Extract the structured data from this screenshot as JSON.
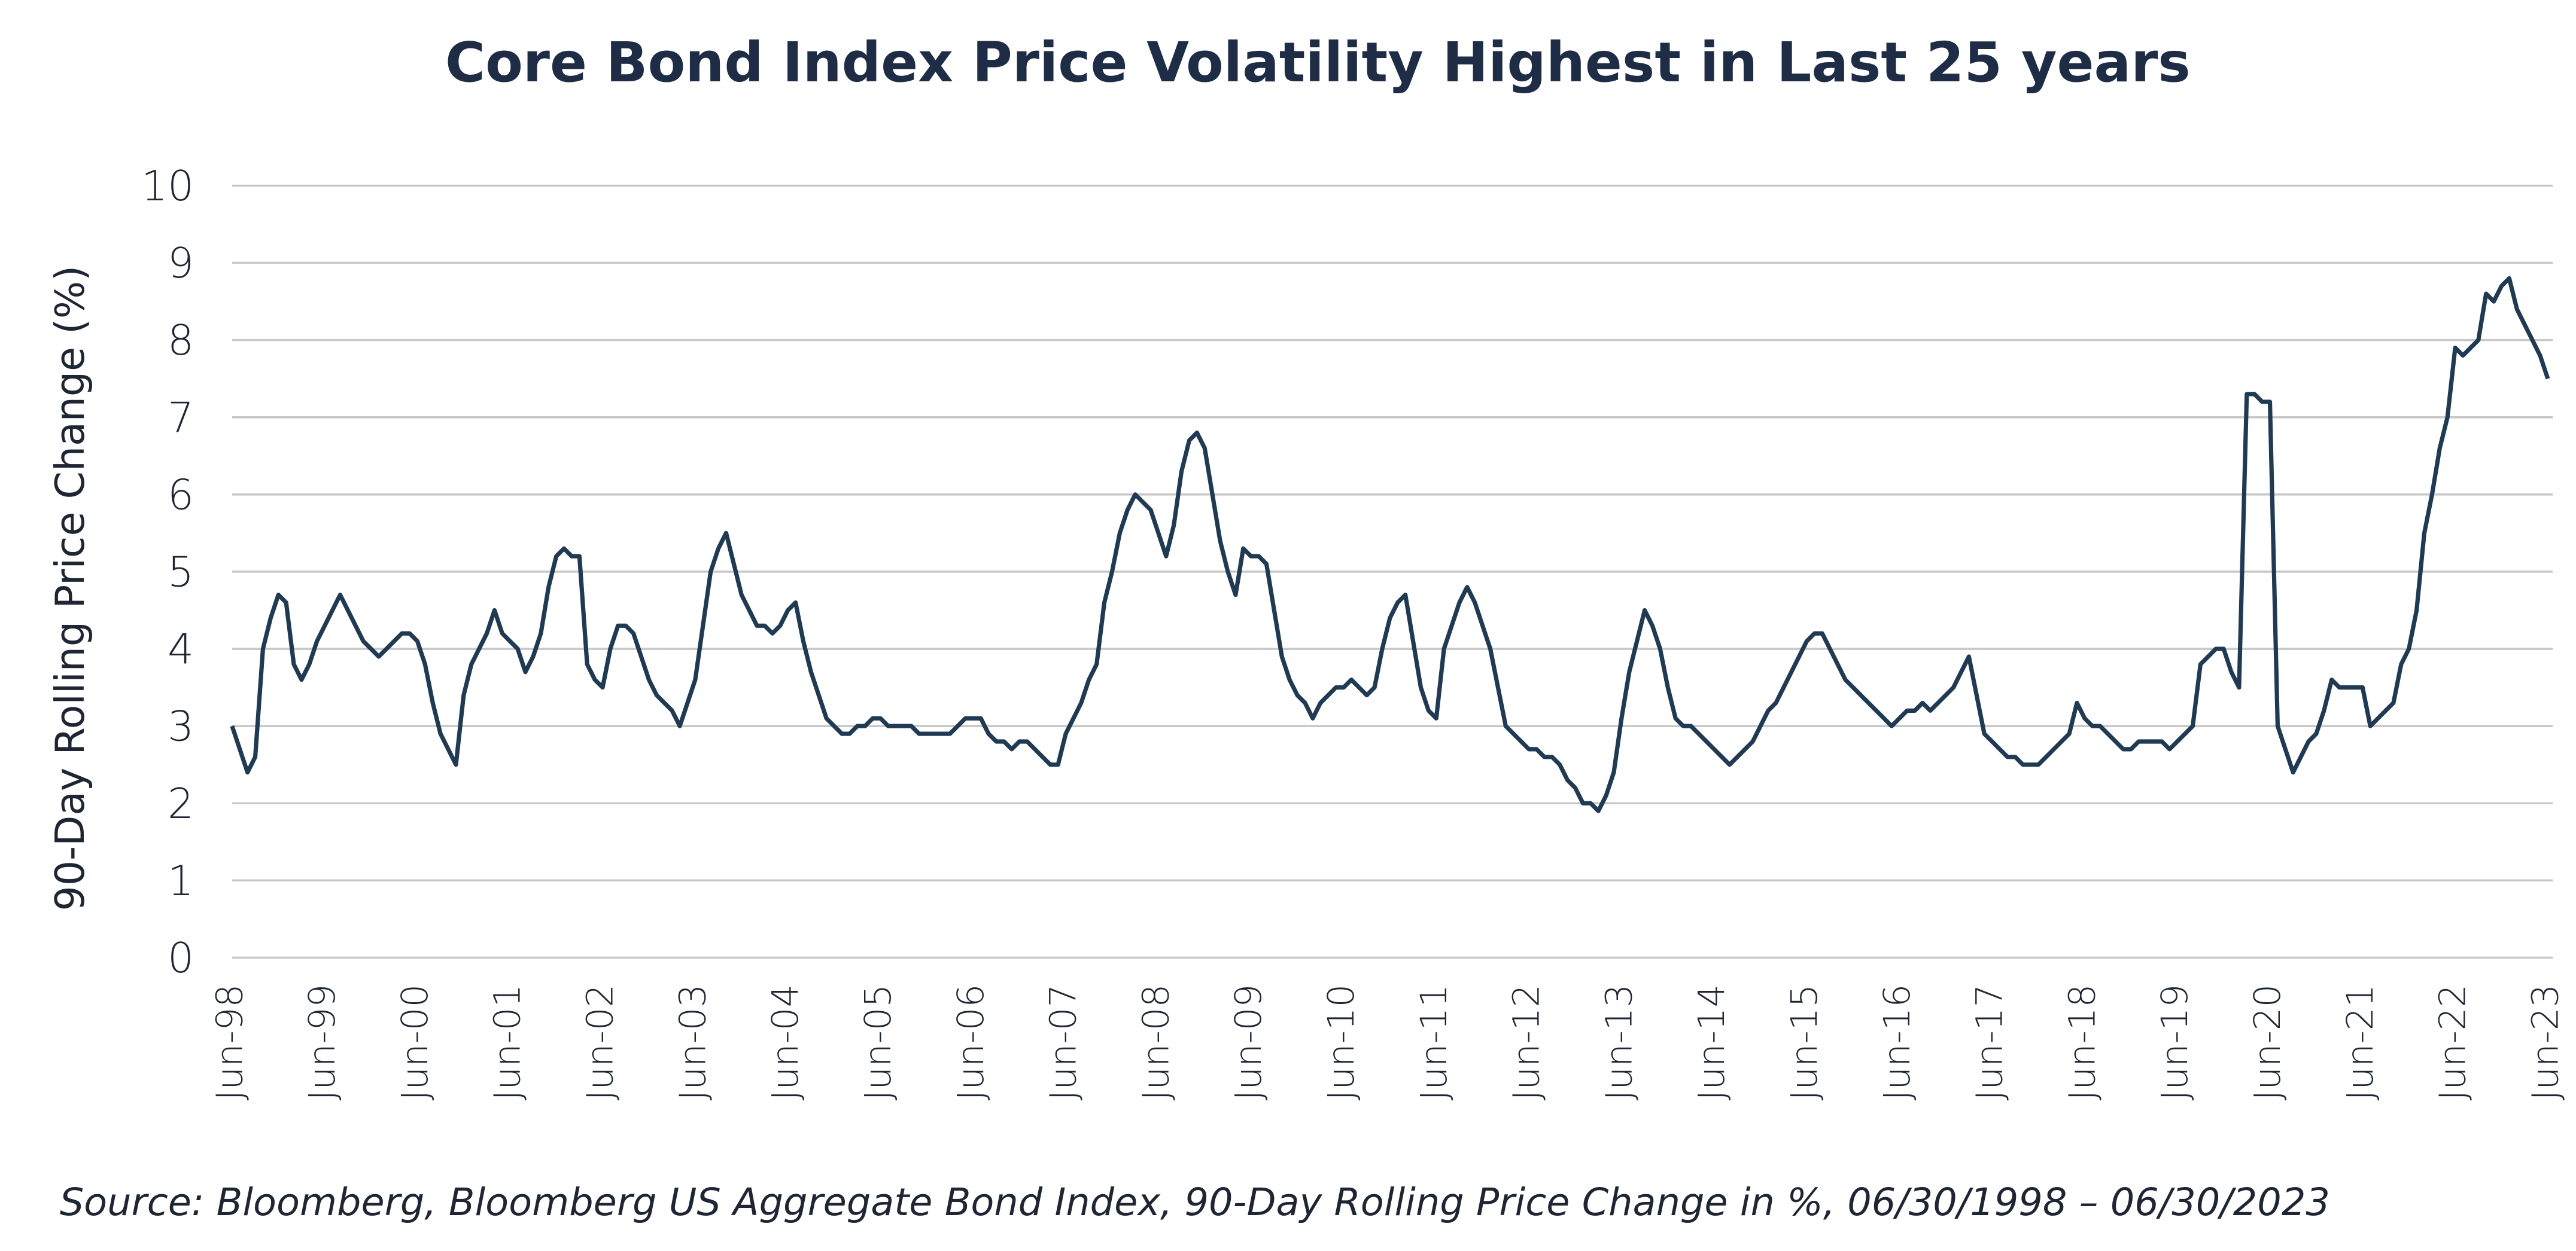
{
  "chart_data": {
    "type": "line",
    "title": "Core Bond Index Price Volatility Highest in Last 25 years",
    "y_label": "90-Day Rolling Price Change (%)",
    "source": "Source:  Bloomberg, Bloomberg US Aggregate Bond Index, 90-Day Rolling Price Change in %, 06/30/1998 – 06/30/2023",
    "color": "#1f3a52",
    "grid": true,
    "ylim": [
      0,
      10
    ],
    "yticks": [
      0,
      1,
      2,
      3,
      4,
      5,
      6,
      7,
      8,
      9,
      10
    ],
    "categories": [
      "Jun-98",
      null,
      null,
      null,
      null,
      null,
      null,
      null,
      null,
      null,
      null,
      null,
      "Jun-99",
      null,
      null,
      null,
      null,
      null,
      null,
      null,
      null,
      null,
      null,
      null,
      "Jun-00",
      null,
      null,
      null,
      null,
      null,
      null,
      null,
      null,
      null,
      null,
      null,
      "Jun-01",
      null,
      null,
      null,
      null,
      null,
      null,
      null,
      null,
      null,
      null,
      null,
      "Jun-02",
      null,
      null,
      null,
      null,
      null,
      null,
      null,
      null,
      null,
      null,
      null,
      "Jun-03",
      null,
      null,
      null,
      null,
      null,
      null,
      null,
      null,
      null,
      null,
      null,
      "Jun-04",
      null,
      null,
      null,
      null,
      null,
      null,
      null,
      null,
      null,
      null,
      null,
      "Jun-05",
      null,
      null,
      null,
      null,
      null,
      null,
      null,
      null,
      null,
      null,
      null,
      "Jun-06",
      null,
      null,
      null,
      null,
      null,
      null,
      null,
      null,
      null,
      null,
      null,
      "Jun-07",
      null,
      null,
      null,
      null,
      null,
      null,
      null,
      null,
      null,
      null,
      null,
      "Jun-08",
      null,
      null,
      null,
      null,
      null,
      null,
      null,
      null,
      null,
      null,
      null,
      "Jun-09",
      null,
      null,
      null,
      null,
      null,
      null,
      null,
      null,
      null,
      null,
      null,
      "Jun-10",
      null,
      null,
      null,
      null,
      null,
      null,
      null,
      null,
      null,
      null,
      null,
      "Jun-11",
      null,
      null,
      null,
      null,
      null,
      null,
      null,
      null,
      null,
      null,
      null,
      "Jun-12",
      null,
      null,
      null,
      null,
      null,
      null,
      null,
      null,
      null,
      null,
      null,
      "Jun-13",
      null,
      null,
      null,
      null,
      null,
      null,
      null,
      null,
      null,
      null,
      null,
      "Jun-14",
      null,
      null,
      null,
      null,
      null,
      null,
      null,
      null,
      null,
      null,
      null,
      "Jun-15",
      null,
      null,
      null,
      null,
      null,
      null,
      null,
      null,
      null,
      null,
      null,
      "Jun-16",
      null,
      null,
      null,
      null,
      null,
      null,
      null,
      null,
      null,
      null,
      null,
      "Jun-17",
      null,
      null,
      null,
      null,
      null,
      null,
      null,
      null,
      null,
      null,
      null,
      "Jun-18",
      null,
      null,
      null,
      null,
      null,
      null,
      null,
      null,
      null,
      null,
      null,
      "Jun-19",
      null,
      null,
      null,
      null,
      null,
      null,
      null,
      null,
      null,
      null,
      null,
      "Jun-20",
      null,
      null,
      null,
      null,
      null,
      null,
      null,
      null,
      null,
      null,
      null,
      "Jun-21",
      null,
      null,
      null,
      null,
      null,
      null,
      null,
      null,
      null,
      null,
      null,
      "Jun-22",
      null,
      null,
      null,
      null,
      null,
      null,
      null,
      null,
      null,
      null,
      null,
      "Jun-23"
    ],
    "values": [
      3.0,
      2.7,
      2.4,
      2.6,
      4.0,
      4.4,
      4.7,
      4.6,
      3.8,
      3.6,
      3.8,
      4.1,
      4.3,
      4.5,
      4.7,
      4.5,
      4.3,
      4.1,
      4.0,
      3.9,
      4.0,
      4.1,
      4.2,
      4.2,
      4.1,
      3.8,
      3.3,
      2.9,
      2.7,
      2.5,
      3.4,
      3.8,
      4.0,
      4.2,
      4.5,
      4.2,
      4.1,
      4.0,
      3.7,
      3.9,
      4.2,
      4.8,
      5.2,
      5.3,
      5.2,
      5.2,
      3.8,
      3.6,
      3.5,
      4.0,
      4.3,
      4.3,
      4.2,
      3.9,
      3.6,
      3.4,
      3.3,
      3.2,
      3.0,
      3.3,
      3.6,
      4.3,
      5.0,
      5.3,
      5.5,
      5.1,
      4.7,
      4.5,
      4.3,
      4.3,
      4.2,
      4.3,
      4.5,
      4.6,
      4.1,
      3.7,
      3.4,
      3.1,
      3.0,
      2.9,
      2.9,
      3.0,
      3.0,
      3.1,
      3.1,
      3.0,
      3.0,
      3.0,
      3.0,
      2.9,
      2.9,
      2.9,
      2.9,
      2.9,
      3.0,
      3.1,
      3.1,
      3.1,
      2.9,
      2.8,
      2.8,
      2.7,
      2.8,
      2.8,
      2.7,
      2.6,
      2.5,
      2.5,
      2.9,
      3.1,
      3.3,
      3.6,
      3.8,
      4.6,
      5.0,
      5.5,
      5.8,
      6.0,
      5.9,
      5.8,
      5.5,
      5.2,
      5.6,
      6.3,
      6.7,
      6.8,
      6.6,
      6.0,
      5.4,
      5.0,
      4.7,
      5.3,
      5.2,
      5.2,
      5.1,
      4.5,
      3.9,
      3.6,
      3.4,
      3.3,
      3.1,
      3.3,
      3.4,
      3.5,
      3.5,
      3.6,
      3.5,
      3.4,
      3.5,
      4.0,
      4.4,
      4.6,
      4.7,
      4.1,
      3.5,
      3.2,
      3.1,
      4.0,
      4.3,
      4.6,
      4.8,
      4.6,
      4.3,
      4.0,
      3.5,
      3.0,
      2.9,
      2.8,
      2.7,
      2.7,
      2.6,
      2.6,
      2.5,
      2.3,
      2.2,
      2.0,
      2.0,
      1.9,
      2.1,
      2.4,
      3.1,
      3.7,
      4.1,
      4.5,
      4.3,
      4.0,
      3.5,
      3.1,
      3.0,
      3.0,
      2.9,
      2.8,
      2.7,
      2.6,
      2.5,
      2.6,
      2.7,
      2.8,
      3.0,
      3.2,
      3.3,
      3.5,
      3.7,
      3.9,
      4.1,
      4.2,
      4.2,
      4.0,
      3.8,
      3.6,
      3.5,
      3.4,
      3.3,
      3.2,
      3.1,
      3.0,
      3.1,
      3.2,
      3.2,
      3.3,
      3.2,
      3.3,
      3.4,
      3.5,
      3.7,
      3.9,
      3.4,
      2.9,
      2.8,
      2.7,
      2.6,
      2.6,
      2.5,
      2.5,
      2.5,
      2.6,
      2.7,
      2.8,
      2.9,
      3.3,
      3.1,
      3.0,
      3.0,
      2.9,
      2.8,
      2.7,
      2.7,
      2.8,
      2.8,
      2.8,
      2.8,
      2.7,
      2.8,
      2.9,
      3.0,
      3.8,
      3.9,
      4.0,
      4.0,
      3.7,
      3.5,
      7.3,
      7.3,
      7.2,
      7.2,
      3.0,
      2.7,
      2.4,
      2.6,
      2.8,
      2.9,
      3.2,
      3.6,
      3.5,
      3.5,
      3.5,
      3.5,
      3.0,
      3.1,
      3.2,
      3.3,
      3.8,
      4.0,
      4.5,
      5.5,
      6.0,
      6.6,
      7.0,
      7.9,
      7.8,
      7.9,
      8.0,
      8.6,
      8.5,
      8.7,
      8.8,
      8.4,
      8.2,
      8.0,
      7.8,
      7.5
    ]
  }
}
